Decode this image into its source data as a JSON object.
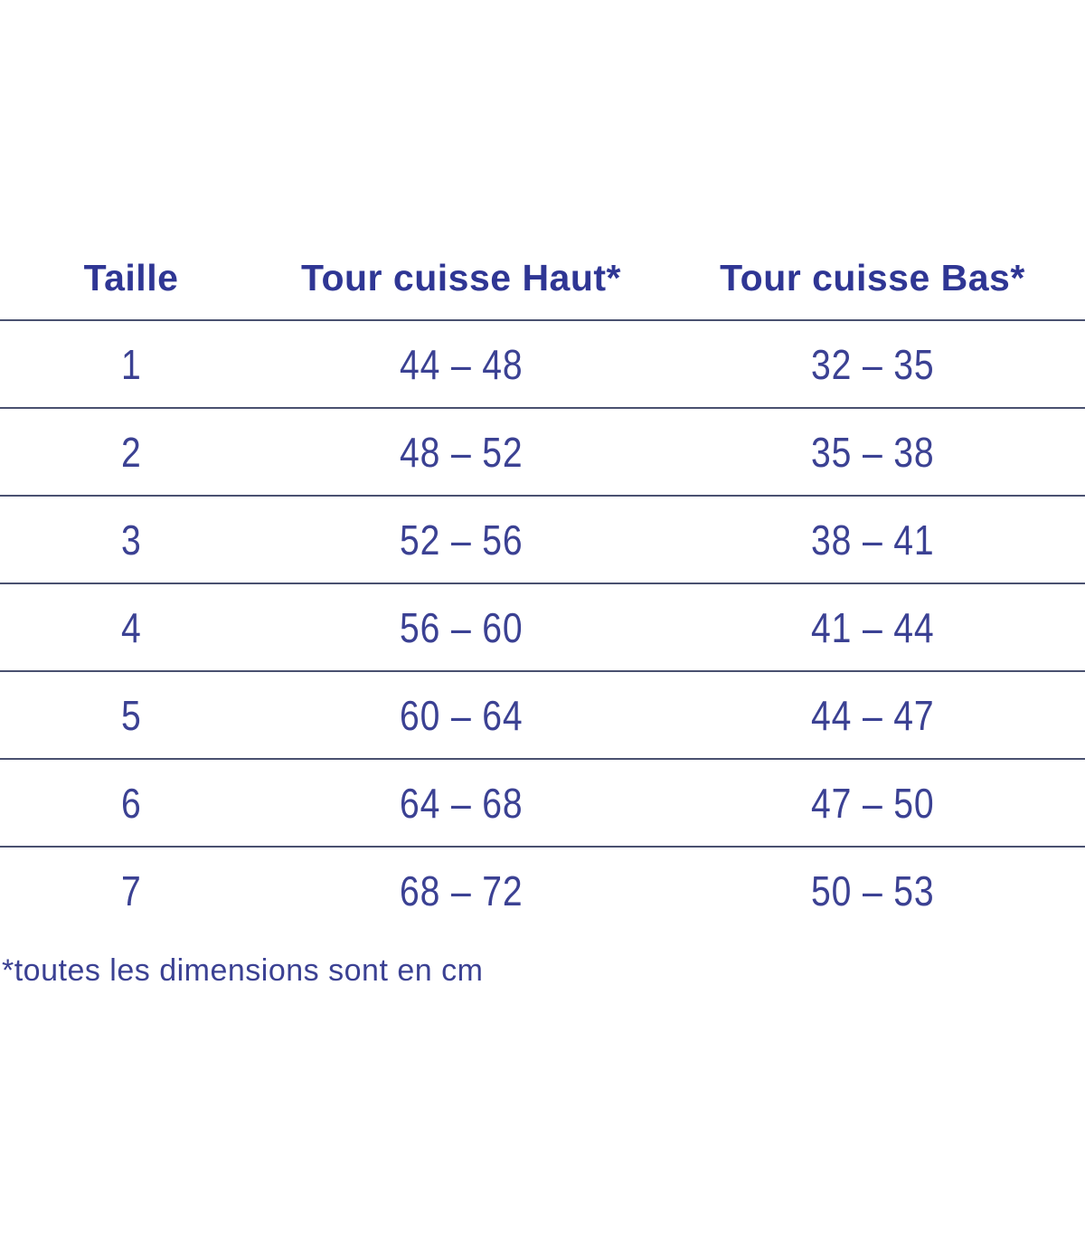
{
  "colors": {
    "header_text": "#2f3694",
    "value_text": "#3b4193",
    "line": "#4a5170",
    "page_bg": "#ffffff"
  },
  "table": {
    "headers": [
      {
        "label": "Taille"
      },
      {
        "label": "Tour cuisse Haut*"
      },
      {
        "label": "Tour cuisse Bas*"
      }
    ],
    "rows": [
      {
        "taille": "1",
        "haut": "44 – 48",
        "bas": "32 – 35"
      },
      {
        "taille": "2",
        "haut": "48 – 52",
        "bas": "35 – 38"
      },
      {
        "taille": "3",
        "haut": "52 – 56",
        "bas": "38 – 41"
      },
      {
        "taille": "4",
        "haut": "56 – 60",
        "bas": "41 – 44"
      },
      {
        "taille": "5",
        "haut": "60 – 64",
        "bas": "44 – 47"
      },
      {
        "taille": "6",
        "haut": "64 – 68",
        "bas": "47 – 50"
      },
      {
        "taille": "7",
        "haut": "68 – 72",
        "bas": "50 – 53"
      }
    ]
  },
  "footnote": "*toutes les dimensions sont en cm"
}
